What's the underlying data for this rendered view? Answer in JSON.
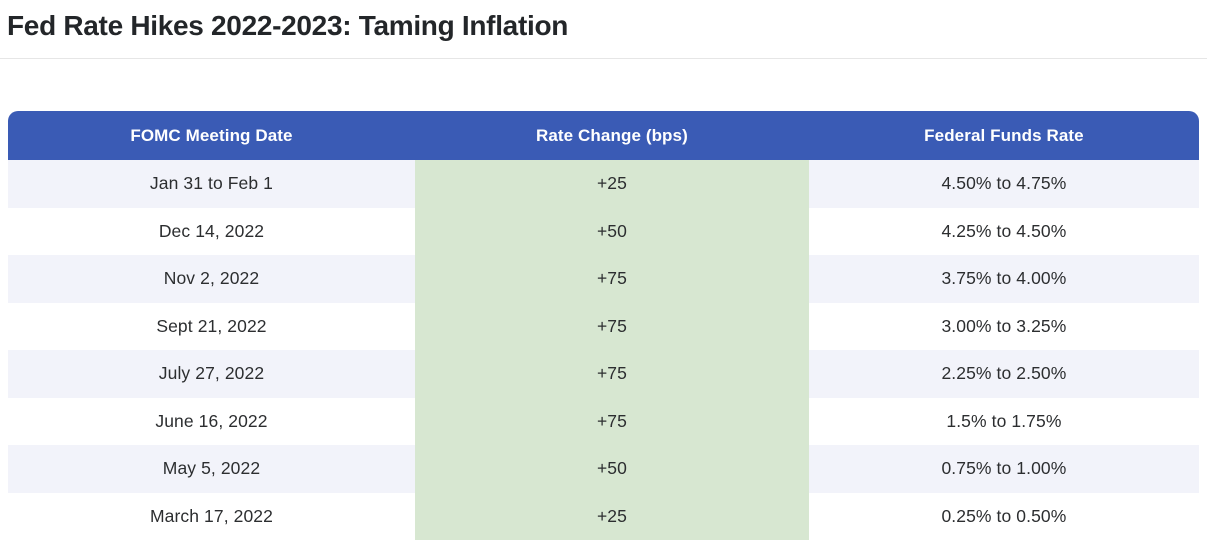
{
  "page": {
    "title": "Fed Rate Hikes 2022-2023: Taming Inflation"
  },
  "chart_data": {
    "type": "table",
    "title": "Fed Rate Hikes 2022-2023: Taming Inflation",
    "columns": [
      "FOMC Meeting Date",
      "Rate Change (bps)",
      "Federal Funds Rate"
    ],
    "rows": [
      [
        "Jan 31 to Feb 1",
        "+25",
        "4.50% to 4.75%"
      ],
      [
        "Dec 14, 2022",
        "+50",
        "4.25% to 4.50%"
      ],
      [
        "Nov 2, 2022",
        "+75",
        "3.75% to 4.00%"
      ],
      [
        "Sept 21, 2022",
        "+75",
        "3.00% to 3.25%"
      ],
      [
        "July 27, 2022",
        "+75",
        "2.25% to 2.50%"
      ],
      [
        "June 16, 2022",
        "+75",
        "1.5% to 1.75%"
      ],
      [
        "May 5, 2022",
        "+50",
        "0.75% to 1.00%"
      ],
      [
        "March 17, 2022",
        "+25",
        "0.25% to 0.50%"
      ]
    ],
    "rate_change_bps_values": [
      25,
      50,
      75,
      75,
      75,
      75,
      50,
      25
    ],
    "highlight_column": "Rate Change (bps)",
    "layout": {
      "header_position": "top",
      "alternating_rows": true,
      "column_alignment": "center"
    },
    "colors": {
      "header_bg": "#3a5bb5",
      "header_text": "#ffffff",
      "highlight_column_bg": "#d7e7d1",
      "alt_row_bg": "#f2f3fa",
      "row_bg": "#ffffff",
      "cell_text": "#2c2e30",
      "title_text": "#232629",
      "divider": "#e6e6e6"
    }
  }
}
